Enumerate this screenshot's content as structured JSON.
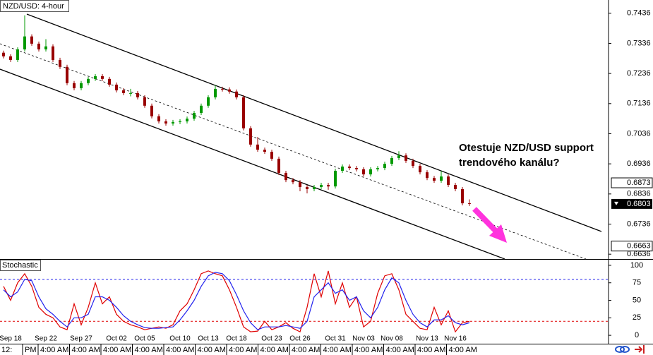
{
  "chart_data": [
    {
      "type": "candlestick",
      "title": "NZD/USD: 4-hour",
      "annotation": [
        "Otestuje NZD/USD support",
        "trendového kanálu?"
      ],
      "categories": [
        null,
        "Sep 18",
        null,
        null,
        null,
        null,
        "Sep 22",
        null,
        null,
        null,
        null,
        "Sep 27",
        null,
        null,
        null,
        null,
        "Oct 02",
        null,
        null,
        null,
        "Oct 05",
        null,
        null,
        null,
        null,
        "Oct 10",
        null,
        null,
        null,
        "Oct 13",
        null,
        null,
        null,
        "Oct 18",
        null,
        null,
        null,
        null,
        "Oct 23",
        null,
        null,
        null,
        "Oct 26",
        null,
        null,
        null,
        null,
        "Oct 31",
        null,
        null,
        null,
        "Nov 03",
        null,
        null,
        null,
        "Nov 08",
        null,
        null,
        null,
        null,
        "Nov 13",
        null,
        null,
        null,
        "Nov 16",
        null,
        null
      ],
      "open": [
        0.7305,
        0.7293,
        0.7281,
        0.7316,
        0.7359,
        0.7335,
        0.7316,
        0.7326,
        0.7281,
        0.7258,
        0.7204,
        0.7187,
        0.7204,
        0.7218,
        0.7227,
        0.7218,
        0.7199,
        0.718,
        0.7171,
        0.7171,
        0.7157,
        0.7129,
        0.7094,
        0.7077,
        0.707,
        0.7075,
        0.7077,
        0.7086,
        0.7105,
        0.7129,
        0.7157,
        0.7185,
        0.7183,
        0.7176,
        0.7157,
        0.7054,
        0.7,
        0.6983,
        0.6976,
        0.6953,
        0.6906,
        0.6882,
        0.6875,
        0.6859,
        0.6852,
        0.6859,
        0.6866,
        0.6861,
        0.6913,
        0.6927,
        0.6922,
        0.6918,
        0.6901,
        0.6918,
        0.6922,
        0.6936,
        0.6955,
        0.6964,
        0.6946,
        0.6929,
        0.6908,
        0.6889,
        0.688,
        0.6894,
        0.6866,
        0.6852,
        0.6805
      ],
      "high": [
        0.7312,
        0.73,
        0.7323,
        0.7429,
        0.7366,
        0.7342,
        0.735,
        0.7333,
        0.7288,
        0.7265,
        0.7211,
        0.7211,
        0.7225,
        0.7234,
        0.7234,
        0.7225,
        0.7206,
        0.7187,
        0.7185,
        0.7178,
        0.7164,
        0.7136,
        0.7101,
        0.7084,
        0.7082,
        0.7084,
        0.7093,
        0.7112,
        0.7136,
        0.7164,
        0.7197,
        0.7192,
        0.719,
        0.7183,
        0.7164,
        0.7061,
        0.7025,
        0.699,
        0.6983,
        0.696,
        0.6913,
        0.6889,
        0.6882,
        0.6866,
        0.6866,
        0.6873,
        0.6873,
        0.692,
        0.6934,
        0.6934,
        0.6929,
        0.6925,
        0.6925,
        0.6929,
        0.6943,
        0.6962,
        0.6978,
        0.6971,
        0.6953,
        0.6936,
        0.6915,
        0.6896,
        0.6912,
        0.6901,
        0.6873,
        0.6859,
        0.6818
      ],
      "low": [
        0.7286,
        0.7274,
        0.7274,
        0.7309,
        0.7328,
        0.7309,
        0.7309,
        0.7274,
        0.7251,
        0.7197,
        0.718,
        0.718,
        0.7197,
        0.7211,
        0.7211,
        0.7192,
        0.7173,
        0.7164,
        0.716,
        0.715,
        0.7122,
        0.7087,
        0.707,
        0.7063,
        0.7063,
        0.7068,
        0.707,
        0.7079,
        0.7098,
        0.7122,
        0.715,
        0.7176,
        0.7169,
        0.715,
        0.7047,
        0.6993,
        0.6976,
        0.6969,
        0.6946,
        0.6899,
        0.6875,
        0.6868,
        0.6845,
        0.6838,
        0.6845,
        0.6852,
        0.685,
        0.6854,
        0.6906,
        0.6915,
        0.6911,
        0.6894,
        0.6894,
        0.6911,
        0.6915,
        0.6929,
        0.6948,
        0.6939,
        0.6922,
        0.6901,
        0.6882,
        0.6873,
        0.6873,
        0.6859,
        0.6845,
        0.6798,
        0.6796
      ],
      "close": [
        0.7293,
        0.7281,
        0.7316,
        0.7359,
        0.7335,
        0.7316,
        0.7326,
        0.7281,
        0.7258,
        0.7204,
        0.7187,
        0.7204,
        0.7218,
        0.7227,
        0.7218,
        0.7199,
        0.718,
        0.7171,
        0.7171,
        0.7157,
        0.7129,
        0.7094,
        0.7077,
        0.707,
        0.7075,
        0.7077,
        0.7086,
        0.7105,
        0.7129,
        0.7157,
        0.7185,
        0.7183,
        0.7176,
        0.7157,
        0.7054,
        0.7,
        0.6983,
        0.6976,
        0.6953,
        0.6906,
        0.6882,
        0.6875,
        0.6859,
        0.6852,
        0.6859,
        0.6866,
        0.6861,
        0.6913,
        0.6927,
        0.6922,
        0.6918,
        0.6901,
        0.6918,
        0.6922,
        0.6936,
        0.6955,
        0.6964,
        0.6946,
        0.6929,
        0.6908,
        0.6889,
        0.688,
        0.6894,
        0.6866,
        0.6852,
        0.6805,
        0.6803
      ],
      "up_color": "#009900",
      "down_color": "#990000",
      "ylim": [
        0.662,
        0.748
      ],
      "yticks": [
        0.7436,
        0.7336,
        0.7236,
        0.7136,
        0.7036,
        0.6936,
        0.6836,
        0.6736,
        0.6636
      ],
      "level_labels": [
        0.6873,
        0.6663
      ],
      "last_price": 0.6803
    },
    {
      "type": "line",
      "title": "Stochastic",
      "series": [
        {
          "color": "#e00000",
          "values": [
            70,
            50,
            75,
            88,
            70,
            40,
            30,
            25,
            12,
            8,
            45,
            15,
            40,
            75,
            45,
            55,
            30,
            20,
            15,
            12,
            8,
            10,
            12,
            10,
            15,
            35,
            45,
            65,
            88,
            92,
            88,
            85,
            65,
            40,
            12,
            5,
            6,
            20,
            8,
            12,
            18,
            10,
            5,
            40,
            88,
            55,
            92,
            45,
            75,
            40,
            55,
            12,
            20,
            60,
            85,
            88,
            65,
            30,
            20,
            10,
            8,
            40,
            15,
            35,
            5,
            18,
            20
          ]
        },
        {
          "color": "#2222ee",
          "values": [
            65,
            55,
            62,
            80,
            78,
            55,
            38,
            30,
            20,
            12,
            25,
            25,
            30,
            55,
            55,
            50,
            40,
            28,
            20,
            15,
            11,
            10,
            10,
            11,
            12,
            22,
            35,
            50,
            70,
            85,
            90,
            88,
            78,
            58,
            35,
            18,
            8,
            12,
            12,
            12,
            14,
            12,
            10,
            20,
            55,
            65,
            75,
            60,
            65,
            50,
            55,
            35,
            25,
            40,
            65,
            82,
            75,
            50,
            30,
            18,
            12,
            22,
            22,
            28,
            18,
            15,
            18
          ]
        }
      ],
      "levels": [
        {
          "value": 80,
          "color": "#2222ee"
        },
        {
          "value": 20,
          "color": "#e00000"
        }
      ],
      "ylim": [
        -12,
        108
      ],
      "yticks": [
        100,
        75,
        50,
        25,
        0
      ]
    }
  ],
  "time_labels": [
    "12:",
    "PM",
    "4:00 AM",
    "4:00 AM",
    "4:00 AM",
    "4:00 AM",
    "4:00 AM",
    "4:00 AM",
    "4:00 AM",
    "4:00 AM",
    "4:00 AM",
    "4:00 AM",
    "4:00 AM",
    "4:00 AM",
    "4:00 AM",
    "4:00 AM"
  ]
}
